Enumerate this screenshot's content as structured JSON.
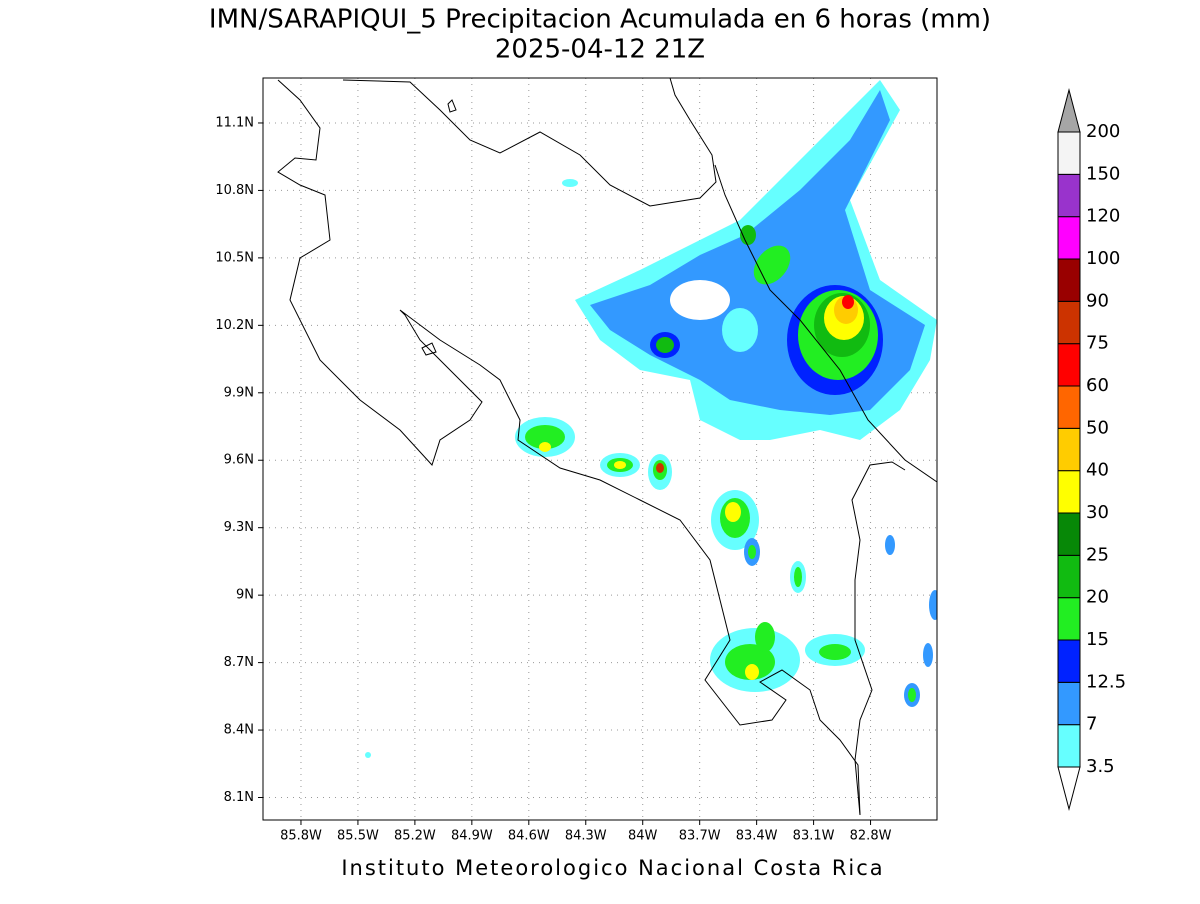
{
  "title": "IMN/SARAPIQUI_5 Precipitacion Acumulada en 6 horas (mm)",
  "subtitle": "2025-04-12 21Z",
  "footer": "Instituto Meteorologico Nacional Costa Rica",
  "map": {
    "xlim": [
      -86.0,
      -82.45
    ],
    "ylim": [
      8.0,
      11.3
    ],
    "grid": true,
    "xticks": [
      {
        "value": -85.8,
        "label": "85.8W"
      },
      {
        "value": -85.5,
        "label": "85.5W"
      },
      {
        "value": -85.2,
        "label": "85.2W"
      },
      {
        "value": -84.9,
        "label": "84.9W"
      },
      {
        "value": -84.6,
        "label": "84.6W"
      },
      {
        "value": -84.3,
        "label": "84.3W"
      },
      {
        "value": -84,
        "label": "84W"
      },
      {
        "value": -83.7,
        "label": "83.7W"
      },
      {
        "value": -83.4,
        "label": "83.4W"
      },
      {
        "value": -83.1,
        "label": "83.1W"
      },
      {
        "value": -82.8,
        "label": "82.8W"
      }
    ],
    "yticks": [
      {
        "value": 8.1,
        "label": "8.1N"
      },
      {
        "value": 8.4,
        "label": "8.4N"
      },
      {
        "value": 8.7,
        "label": "8.7N"
      },
      {
        "value": 9,
        "label": "9N"
      },
      {
        "value": 9.3,
        "label": "9.3N"
      },
      {
        "value": 9.6,
        "label": "9.6N"
      },
      {
        "value": 9.9,
        "label": "9.9N"
      },
      {
        "value": 10.2,
        "label": "10.2N"
      },
      {
        "value": 10.5,
        "label": "10.5N"
      },
      {
        "value": 10.8,
        "label": "10.8N"
      },
      {
        "value": 11.1,
        "label": "11.1N"
      }
    ]
  },
  "colorbar": {
    "levels": [
      3.5,
      7,
      12.5,
      15,
      20,
      25,
      30,
      40,
      50,
      60,
      75,
      90,
      100,
      120,
      150,
      200
    ],
    "colors": [
      "#66ffff",
      "#3399ff",
      "#0022ff",
      "#22ee22",
      "#11bb11",
      "#078807",
      "#ffff00",
      "#ffcc00",
      "#ff6600",
      "#ff0000",
      "#cc3300",
      "#990000",
      "#ff00ff",
      "#9933cc",
      "#f4f4f4"
    ],
    "under_color": "#ffffff",
    "over_color": "#a6a6a6"
  }
}
